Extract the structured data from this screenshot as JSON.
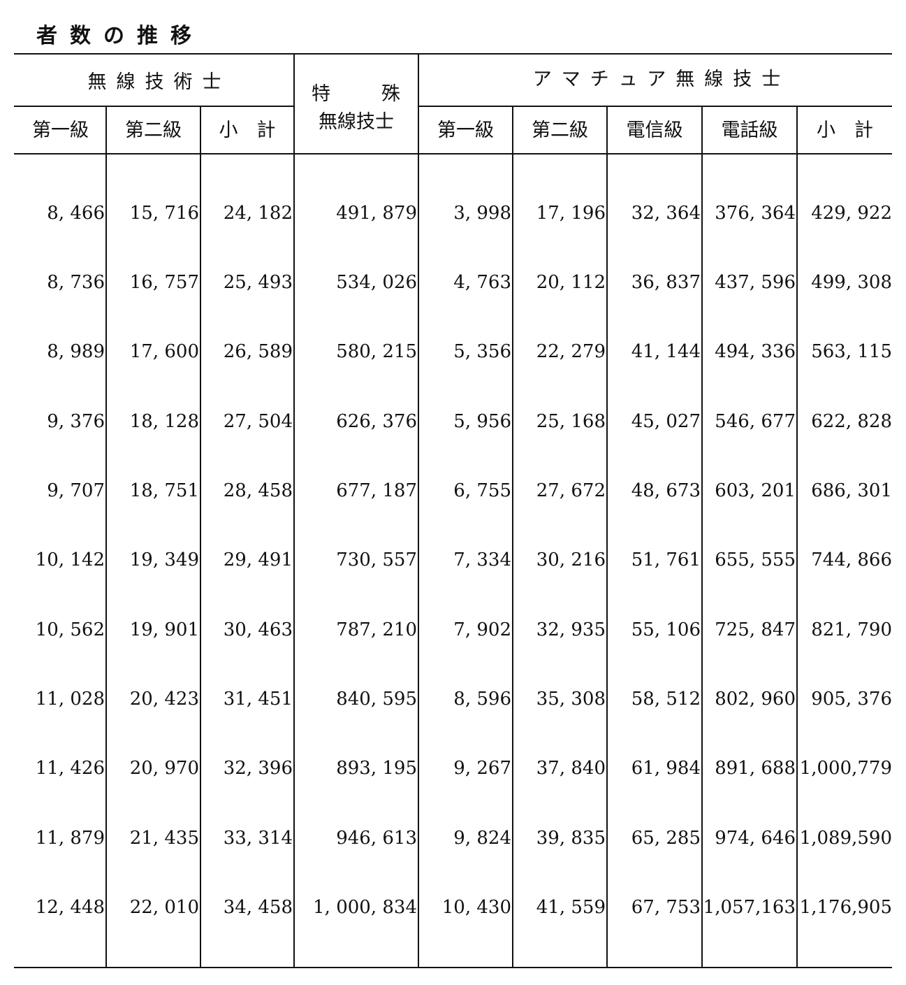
{
  "title": "者数の推移",
  "header": {
    "group_musen_gijutsushi": "無線技術士",
    "tokushu_line1_a": "特",
    "tokushu_line1_b": "殊",
    "tokushu_line2": "無線技士",
    "group_amateur": "アマチュア無線技士",
    "columns": [
      "第一級",
      "第二級",
      "小　計",
      "第一級",
      "第二級",
      "電信級",
      "電話級",
      "小　計"
    ]
  },
  "rows": [
    [
      "8, 466",
      "15, 716",
      "24, 182",
      "491, 879",
      "3, 998",
      "17, 196",
      "32, 364",
      "376, 364",
      "429, 922"
    ],
    [
      "8, 736",
      "16, 757",
      "25, 493",
      "534, 026",
      "4, 763",
      "20, 112",
      "36, 837",
      "437, 596",
      "499, 308"
    ],
    [
      "8, 989",
      "17, 600",
      "26, 589",
      "580, 215",
      "5, 356",
      "22, 279",
      "41, 144",
      "494, 336",
      "563, 115"
    ],
    [
      "9, 376",
      "18, 128",
      "27, 504",
      "626, 376",
      "5, 956",
      "25, 168",
      "45, 027",
      "546, 677",
      "622, 828"
    ],
    [
      "9, 707",
      "18, 751",
      "28, 458",
      "677, 187",
      "6, 755",
      "27, 672",
      "48, 673",
      "603, 201",
      "686, 301"
    ],
    [
      "10, 142",
      "19, 349",
      "29, 491",
      "730, 557",
      "7, 334",
      "30, 216",
      "51, 761",
      "655, 555",
      "744, 866"
    ],
    [
      "10, 562",
      "19, 901",
      "30, 463",
      "787, 210",
      "7, 902",
      "32, 935",
      "55, 106",
      "725, 847",
      "821, 790"
    ],
    [
      "11, 028",
      "20, 423",
      "31, 451",
      "840, 595",
      "8, 596",
      "35, 308",
      "58, 512",
      "802, 960",
      "905, 376"
    ],
    [
      "11, 426",
      "20, 970",
      "32, 396",
      "893, 195",
      "9, 267",
      "37, 840",
      "61, 984",
      "891, 688",
      "1,000,779"
    ],
    [
      "11, 879",
      "21, 435",
      "33, 314",
      "946, 613",
      "9, 824",
      "39, 835",
      "65, 285",
      "974, 646",
      "1,089,590"
    ],
    [
      "12, 448",
      "22, 010",
      "34, 458",
      "1, 000, 834",
      "10, 430",
      "41, 559",
      "67, 753",
      "1,057,163",
      "1,176,905"
    ]
  ]
}
